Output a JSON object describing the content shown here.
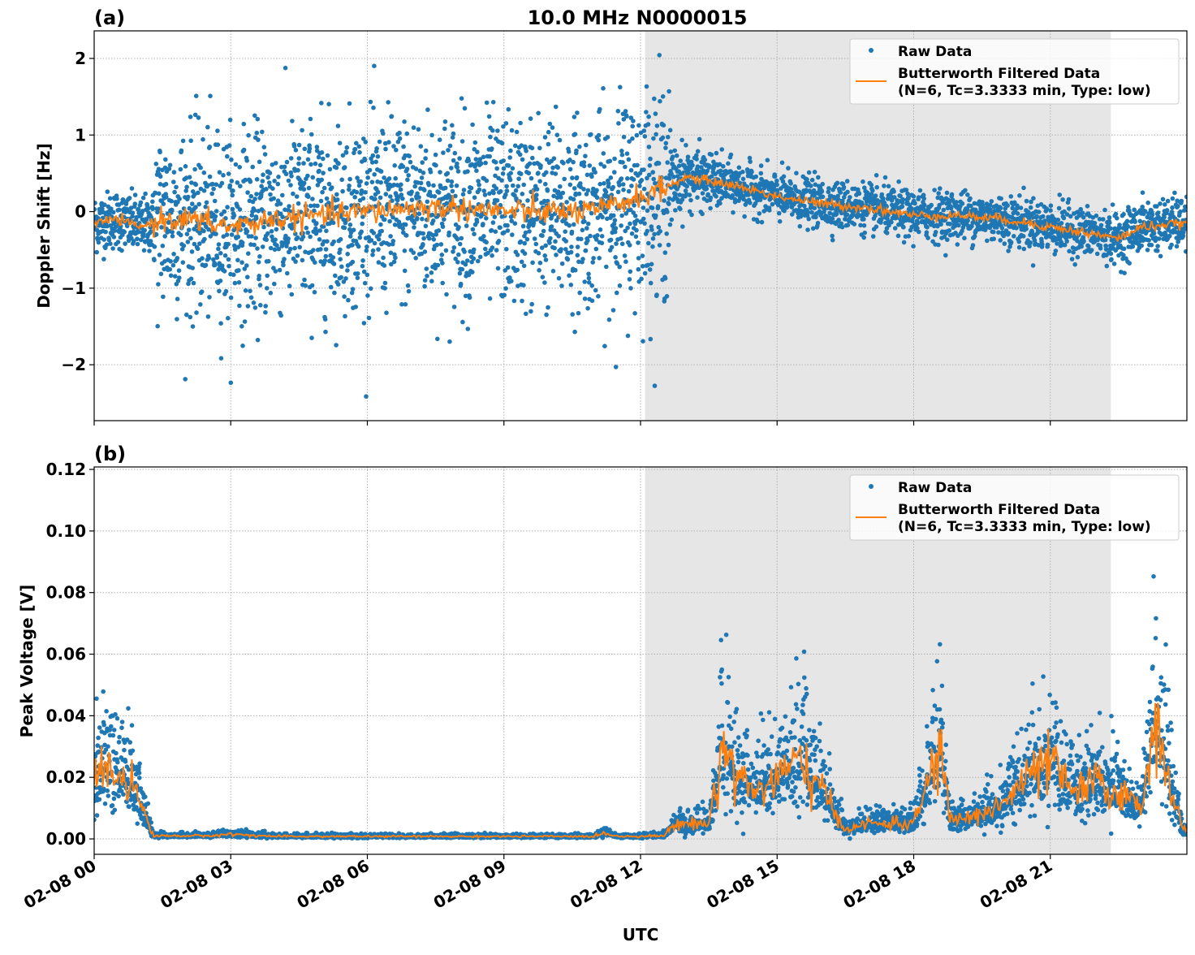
{
  "chart_data": [
    {
      "type": "scatter",
      "panel_label": "(a)",
      "title": "10.0 MHz N0000015",
      "xlabel": "",
      "ylabel": "Doppler Shift [Hz]",
      "xlim": [
        "02-08 00:00",
        "02-09 00:00"
      ],
      "ylim": [
        -2.73,
        2.36
      ],
      "yticks": [
        2,
        1,
        0,
        -1,
        -2
      ],
      "ytick_labels": [
        "2",
        "1",
        "0",
        "−1",
        "−2"
      ],
      "grid": true,
      "legend_placement": "top-right",
      "shaded_interval_hours": [
        12.1,
        22.33
      ],
      "shade_color": "#e6e6e6",
      "series": [
        {
          "name": "Raw Data",
          "kind": "points",
          "color": "#1f77b4",
          "envelope": {
            "hours": [
              0,
              1.3,
              1.35,
              11.3,
              11.35,
              12.6,
              12.7,
              14,
              24
            ],
            "half_spread": [
              0.25,
              0.25,
              0.8,
              0.8,
              0.9,
              0.9,
              0.3,
              0.2,
              0.22
            ]
          }
        },
        {
          "name": "Butterworth Filtered Data",
          "name_line2": "(N=6, Tc=3.3333 min, Type: low)",
          "kind": "line",
          "color": "#ff7f0e",
          "hours": [
            0,
            0.5,
            1,
            1.5,
            2,
            3,
            4,
            5,
            6,
            7,
            8,
            9,
            10,
            11,
            11.5,
            12,
            12.5,
            13,
            13.5,
            14,
            15,
            16,
            17,
            18,
            19,
            20,
            21,
            22,
            22.5,
            23,
            24
          ],
          "values": [
            -0.15,
            -0.1,
            -0.2,
            -0.1,
            -0.1,
            -0.2,
            -0.1,
            -0.05,
            0,
            0.05,
            0.05,
            0,
            0,
            0,
            0.1,
            0.2,
            0.3,
            0.45,
            0.4,
            0.35,
            0.2,
            0.1,
            0.05,
            -0.05,
            -0.05,
            -0.1,
            -0.2,
            -0.3,
            -0.35,
            -0.2,
            -0.15
          ]
        }
      ]
    },
    {
      "type": "scatter",
      "panel_label": "(b)",
      "xlabel": "UTC",
      "ylabel": "Peak Voltage [V]",
      "xlim": [
        "02-08 00:00",
        "02-09 00:00"
      ],
      "ylim": [
        -0.005,
        0.1208
      ],
      "yticks": [
        0,
        0.02,
        0.04,
        0.06,
        0.08,
        0.1,
        0.12
      ],
      "ytick_labels": [
        "0.00",
        "0.02",
        "0.04",
        "0.06",
        "0.08",
        "0.10",
        "0.12"
      ],
      "xticks_hours": [
        0,
        3,
        6,
        9,
        12,
        15,
        18,
        21
      ],
      "xtick_labels": [
        "02-08 00",
        "02-08 03",
        "02-08 06",
        "02-08 09",
        "02-08 12",
        "02-08 15",
        "02-08 18",
        "02-08 21"
      ],
      "grid": true,
      "legend_placement": "top-right",
      "shaded_interval_hours": [
        12.1,
        22.33
      ],
      "shade_color": "#e6e6e6",
      "series": [
        {
          "name": "Raw Data",
          "kind": "points",
          "color": "#1f77b4"
        },
        {
          "name": "Butterworth Filtered Data",
          "name_line2": "(N=6, Tc=3.3333 min, Type: low)",
          "kind": "line",
          "color": "#ff7f0e",
          "hours": [
            0,
            0.3,
            0.5,
            0.7,
            1,
            1.3,
            2.5,
            3,
            4,
            11,
            11.2,
            11.5,
            12.5,
            12.8,
            13,
            13.5,
            13.8,
            14.2,
            14.5,
            15,
            15.5,
            16,
            16.5,
            17,
            18,
            18.6,
            18.8,
            19.5,
            20,
            20.5,
            21,
            21.5,
            22,
            22.5,
            23,
            23.3,
            23.6,
            23.9,
            24
          ],
          "values": [
            0.018,
            0.024,
            0.02,
            0.022,
            0.012,
            0.001,
            0.001,
            0.0015,
            0.0008,
            0.0008,
            0.002,
            0.0008,
            0.001,
            0.005,
            0.005,
            0.005,
            0.03,
            0.02,
            0.015,
            0.02,
            0.025,
            0.015,
            0.003,
            0.005,
            0.005,
            0.03,
            0.006,
            0.008,
            0.012,
            0.02,
            0.025,
            0.015,
            0.018,
            0.015,
            0.01,
            0.04,
            0.02,
            0.003,
            0.003
          ]
        }
      ]
    }
  ]
}
